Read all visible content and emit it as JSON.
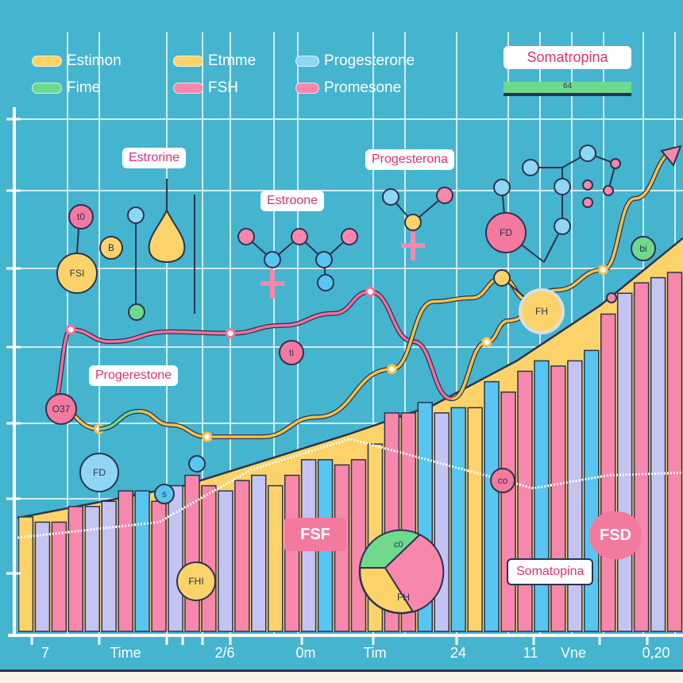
{
  "legend": [
    {
      "label": "Estimon",
      "color": "#fbd36a"
    },
    {
      "label": "Etmme",
      "color": "#fbd36a"
    },
    {
      "label": "Progesterone",
      "color": "#8fd6f5"
    },
    {
      "label": "Fime",
      "color": "#6fd98d"
    },
    {
      "label": "FSH",
      "color": "#f788ab"
    },
    {
      "label": "Promesone",
      "color": "#f788ab"
    }
  ],
  "side_panel": {
    "title": "Somatropina",
    "progress_label": "64",
    "progress_value": 64
  },
  "annotations": {
    "estrorine": "Estrorine",
    "estroone": "Estroone",
    "progesterona": "Progesterona",
    "progerestone": "Progerestone",
    "somatopina": "Somatopina",
    "fsf": "FSF",
    "fsd": "FSD"
  },
  "bubbles": {
    "fsi": "FSI",
    "t0": "t0",
    "b": "B",
    "ob7": "O37",
    "fd_blue": "FD",
    "s": "s",
    "fhi": "FHI",
    "ti": "ti",
    "fd_pink": "FD",
    "fh": "FH",
    "bi": "bi",
    "co": "co",
    "pie_top": "c0",
    "pie_bottom": "FH"
  },
  "chart_data": {
    "type": "bar",
    "title": "",
    "xlabel": "",
    "ylabel": "",
    "x_tick_labels": [
      "7",
      "Time",
      "2/6",
      "0m",
      "Tim",
      "24",
      "11",
      "Vne",
      "0,20"
    ],
    "xlim": [
      0,
      40
    ],
    "ylim": [
      0,
      100
    ],
    "grid": true,
    "bar_series_colors": [
      "#fbd36a",
      "#58c6f0",
      "#c4c4f2",
      "#f788ab"
    ],
    "bars": [
      {
        "v": 22,
        "s": 0
      },
      {
        "v": 21,
        "s": 2
      },
      {
        "v": 21,
        "s": 3
      },
      {
        "v": 24,
        "s": 3
      },
      {
        "v": 24,
        "s": 2
      },
      {
        "v": 25,
        "s": 2
      },
      {
        "v": 27,
        "s": 3
      },
      {
        "v": 27,
        "s": 1
      },
      {
        "v": 25,
        "s": 3
      },
      {
        "v": 28,
        "s": 2
      },
      {
        "v": 30,
        "s": 3
      },
      {
        "v": 28,
        "s": 3
      },
      {
        "v": 27,
        "s": 2
      },
      {
        "v": 29,
        "s": 3
      },
      {
        "v": 30,
        "s": 2
      },
      {
        "v": 28,
        "s": 0
      },
      {
        "v": 30,
        "s": 3
      },
      {
        "v": 33,
        "s": 2
      },
      {
        "v": 33,
        "s": 1
      },
      {
        "v": 32,
        "s": 3
      },
      {
        "v": 33,
        "s": 3
      },
      {
        "v": 36,
        "s": 0
      },
      {
        "v": 42,
        "s": 3
      },
      {
        "v": 42,
        "s": 3
      },
      {
        "v": 44,
        "s": 1
      },
      {
        "v": 42,
        "s": 2
      },
      {
        "v": 43,
        "s": 1
      },
      {
        "v": 43,
        "s": 0
      },
      {
        "v": 48,
        "s": 1
      },
      {
        "v": 46,
        "s": 3
      },
      {
        "v": 50,
        "s": 3
      },
      {
        "v": 52,
        "s": 1
      },
      {
        "v": 51,
        "s": 3
      },
      {
        "v": 52,
        "s": 2
      },
      {
        "v": 54,
        "s": 1
      },
      {
        "v": 61,
        "s": 3
      },
      {
        "v": 65,
        "s": 2
      },
      {
        "v": 67,
        "s": 3
      },
      {
        "v": 68,
        "s": 2
      },
      {
        "v": 69,
        "s": 3
      }
    ],
    "area": [
      [
        0,
        21.8
      ],
      [
        10,
        28
      ],
      [
        20,
        38
      ],
      [
        25,
        43.5
      ],
      [
        30,
        52
      ],
      [
        35,
        62.6
      ],
      [
        40,
        75.6
      ]
    ],
    "lines": [
      {
        "name": "FSH",
        "color": "#f0719b",
        "points": [
          [
            2.1,
            43.5
          ],
          [
            3.2,
            58
          ],
          [
            5.6,
            55.7
          ],
          [
            9.1,
            57.6
          ],
          [
            12.8,
            57.3
          ],
          [
            15.9,
            58.8
          ],
          [
            19,
            61.1
          ],
          [
            21.2,
            65.3
          ],
          [
            23.8,
            55.7
          ],
          [
            26.1,
            44.7
          ]
        ]
      },
      {
        "name": "Estimon",
        "color": "#f4c24a",
        "points": [
          [
            2.1,
            43.5
          ],
          [
            4.9,
            38.9
          ],
          [
            7.3,
            42.3
          ],
          [
            9.2,
            39.7
          ],
          [
            11.4,
            37.4
          ],
          [
            14.7,
            37.4
          ],
          [
            18,
            41.2
          ],
          [
            22.5,
            50.4
          ],
          [
            25,
            63.4
          ],
          [
            27.3,
            64.1
          ],
          [
            29.1,
            67.9
          ],
          [
            30.7,
            63.7
          ],
          [
            32.4,
            65.6
          ],
          [
            35.2,
            69.5
          ],
          [
            37.1,
            83.2
          ],
          [
            39.5,
            92.1
          ]
        ]
      },
      {
        "name": "Etmme",
        "color": "#f4c24a",
        "points": [
          [
            26.1,
            44.7
          ],
          [
            28.2,
            55.6
          ],
          [
            29.5,
            59.7
          ],
          [
            32.4,
            65.6
          ]
        ]
      },
      {
        "name": "Fime",
        "color": "#6fd98d",
        "points": [
          [
            4.9,
            38.9
          ],
          [
            7.3,
            42.3
          ]
        ]
      }
    ],
    "trend": [
      [
        0,
        18
      ],
      [
        8.5,
        21
      ],
      [
        14,
        31
      ],
      [
        20,
        37
      ],
      [
        31,
        27.5
      ],
      [
        35.5,
        30
      ],
      [
        40,
        30.5
      ]
    ]
  }
}
